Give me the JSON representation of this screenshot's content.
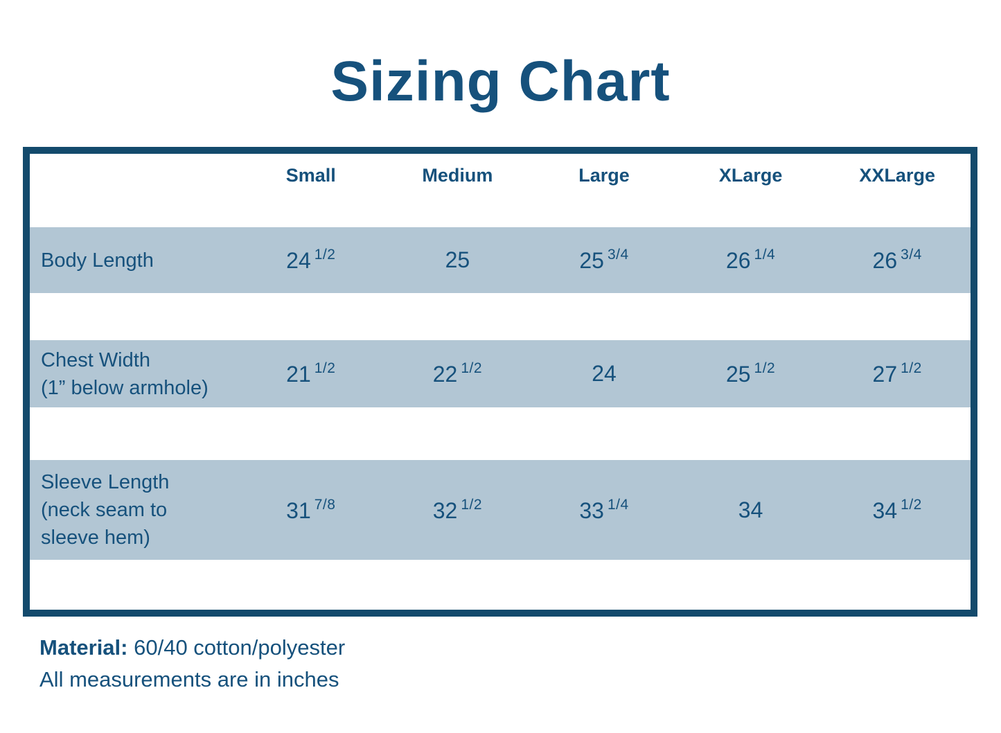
{
  "title": "Sizing Chart",
  "chart_data": {
    "type": "table",
    "title": "Sizing Chart",
    "columns": [
      "Small",
      "Medium",
      "Large",
      "XLarge",
      "XXLarge"
    ],
    "rows": [
      {
        "label": "Body Length",
        "label_display": "Body Length",
        "values_numeric": [
          24.5,
          25,
          25.75,
          26.25,
          26.75
        ],
        "cells": [
          {
            "whole": "24",
            "frac": "1/2"
          },
          {
            "whole": "25",
            "frac": ""
          },
          {
            "whole": "25",
            "frac": "3/4"
          },
          {
            "whole": "26",
            "frac": "1/4"
          },
          {
            "whole": "26",
            "frac": "3/4"
          }
        ]
      },
      {
        "label": "Chest Width (1” below armhole)",
        "label_display": "Chest Width\n(1” below armhole)",
        "values_numeric": [
          21.5,
          22.5,
          24,
          25.5,
          27.5
        ],
        "cells": [
          {
            "whole": "21",
            "frac": "1/2"
          },
          {
            "whole": "22",
            "frac": "1/2"
          },
          {
            "whole": "24",
            "frac": ""
          },
          {
            "whole": "25",
            "frac": "1/2"
          },
          {
            "whole": "27",
            "frac": "1/2"
          }
        ]
      },
      {
        "label": "Sleeve Length (neck seam to sleeve hem)",
        "label_display": "Sleeve Length\n(neck seam to\nsleeve hem)",
        "values_numeric": [
          31.875,
          32.5,
          33.25,
          34,
          34.5
        ],
        "cells": [
          {
            "whole": "31",
            "frac": "7/8"
          },
          {
            "whole": "32",
            "frac": "1/2"
          },
          {
            "whole": "33",
            "frac": "1/4"
          },
          {
            "whole": "34",
            "frac": ""
          },
          {
            "whole": "34",
            "frac": "1/2"
          }
        ]
      }
    ],
    "notes": [
      "Material: 60/40 cotton/polyester",
      "All measurements are in inches"
    ],
    "legend_position": "none",
    "grid": false
  },
  "footer": {
    "material_label": "Material:",
    "material_value": "60/40 cotton/polyester",
    "note": "All measurements are in inches"
  },
  "colors": {
    "text": "#16517C",
    "table_border": "#134A6C",
    "row_band": "#B2C6D4",
    "background": "#FFFFFF"
  }
}
